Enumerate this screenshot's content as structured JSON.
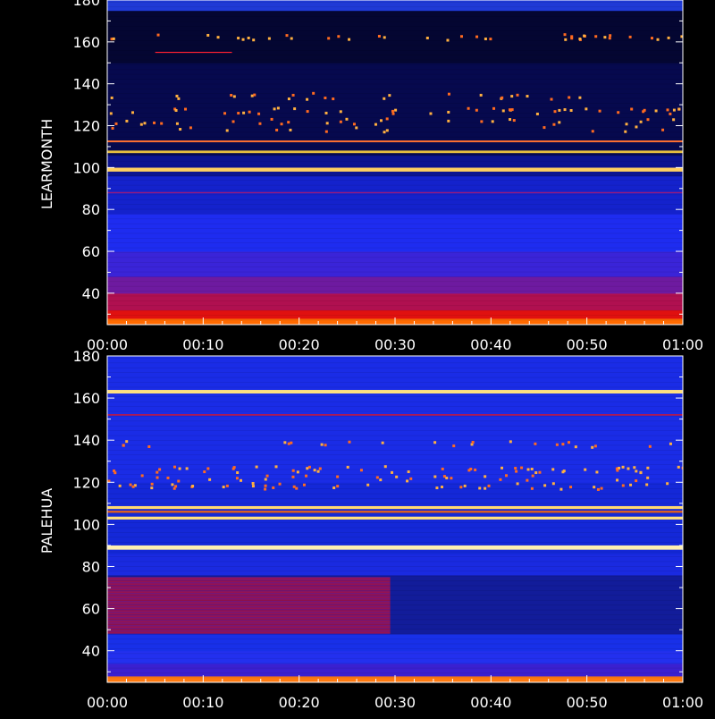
{
  "chart_data": [
    {
      "type": "heatmap",
      "ylabel": "LEARMONTH",
      "ylim": [
        25,
        180
      ],
      "yticks": [
        40,
        60,
        80,
        100,
        120,
        140,
        160,
        180
      ],
      "xticks": [
        "00:00",
        "00:10",
        "00:20",
        "00:30",
        "00:40",
        "00:50",
        "01:00"
      ],
      "x_range_minutes": [
        0,
        60
      ],
      "background_bands": [
        {
          "from": 25,
          "to": 28,
          "color": "#ff6a00"
        },
        {
          "from": 28,
          "to": 32,
          "color": "#e01010"
        },
        {
          "from": 32,
          "to": 40,
          "color": "#b01050"
        },
        {
          "from": 40,
          "to": 48,
          "color": "#6e1aa0"
        },
        {
          "from": 48,
          "to": 60,
          "color": "#3a24d8"
        },
        {
          "from": 60,
          "to": 78,
          "color": "#1e2cf0"
        },
        {
          "from": 78,
          "to": 96,
          "color": "#1422cc"
        },
        {
          "from": 96,
          "to": 106,
          "color": "#0c1490"
        },
        {
          "from": 106,
          "to": 150,
          "color": "#06094e"
        },
        {
          "from": 150,
          "to": 175,
          "color": "#040632"
        },
        {
          "from": 175,
          "to": 180,
          "color": "#1f3ad6"
        }
      ],
      "lines": [
        {
          "freq": 99,
          "thickness": 2.2,
          "color": "#ffd060",
          "from_min": 0,
          "to_min": 60
        },
        {
          "freq": 107.5,
          "thickness": 1.4,
          "color": "#e8c040",
          "from_min": 0,
          "to_min": 60
        },
        {
          "freq": 112.5,
          "thickness": 1.0,
          "color": "#ff7030",
          "from_min": 0,
          "to_min": 60
        },
        {
          "freq": 88,
          "thickness": 0.7,
          "color": "#9a1a7a",
          "from_min": 0,
          "to_min": 60
        },
        {
          "freq": 155,
          "thickness": 0.6,
          "color": "#ff2030",
          "from_min": 5,
          "to_min": 13
        }
      ],
      "burst_bands": [
        {
          "freq": 162,
          "count": 40
        },
        {
          "freq": 134,
          "count": 25
        },
        {
          "freq": 127,
          "count": 45
        },
        {
          "freq": 122,
          "count": 30
        },
        {
          "freq": 118,
          "count": 15
        }
      ]
    },
    {
      "type": "heatmap",
      "ylabel": "PALEHUA",
      "ylim": [
        25,
        180
      ],
      "yticks": [
        40,
        60,
        80,
        100,
        120,
        140,
        160,
        180
      ],
      "xticks": [
        "00:00",
        "00:10",
        "00:20",
        "00:30",
        "00:40",
        "00:50",
        "01:00"
      ],
      "x_range_minutes": [
        0,
        60
      ],
      "background_bands": [
        {
          "from": 25,
          "to": 28,
          "color": "#ff7a10"
        },
        {
          "from": 28,
          "to": 34,
          "color": "#3a20d0"
        },
        {
          "from": 34,
          "to": 40,
          "color": "#2330ee"
        },
        {
          "from": 40,
          "to": 48,
          "color": "#1830e8"
        },
        {
          "from": 48,
          "to": 76,
          "color": "#121c9a"
        },
        {
          "from": 76,
          "to": 86,
          "color": "#1a2ae0"
        },
        {
          "from": 86,
          "to": 120,
          "color": "#1428d8"
        },
        {
          "from": 120,
          "to": 180,
          "color": "#1a2ce6"
        }
      ],
      "block": {
        "from_freq": 48,
        "to_freq": 75,
        "from_min": 0,
        "to_min": 29.5,
        "color": "#c0103a"
      },
      "lines": [
        {
          "freq": 163,
          "thickness": 2.0,
          "color": "#ffe080",
          "from_min": 0,
          "to_min": 60
        },
        {
          "freq": 152,
          "thickness": 0.8,
          "color": "#c01840",
          "from_min": 0,
          "to_min": 60
        },
        {
          "freq": 108,
          "thickness": 1.6,
          "color": "#ffd870",
          "from_min": 0,
          "to_min": 60
        },
        {
          "freq": 106,
          "thickness": 1.2,
          "color": "#e06020",
          "from_min": 0,
          "to_min": 60
        },
        {
          "freq": 103,
          "thickness": 1.6,
          "color": "#ffe080",
          "from_min": 0,
          "to_min": 60
        },
        {
          "freq": 89,
          "thickness": 2.4,
          "color": "#fff0b0",
          "from_min": 0,
          "to_min": 60
        }
      ],
      "burst_bands": [
        {
          "freq": 138,
          "count": 25
        },
        {
          "freq": 126,
          "count": 55
        },
        {
          "freq": 122,
          "count": 30
        },
        {
          "freq": 118,
          "count": 45
        }
      ]
    }
  ]
}
